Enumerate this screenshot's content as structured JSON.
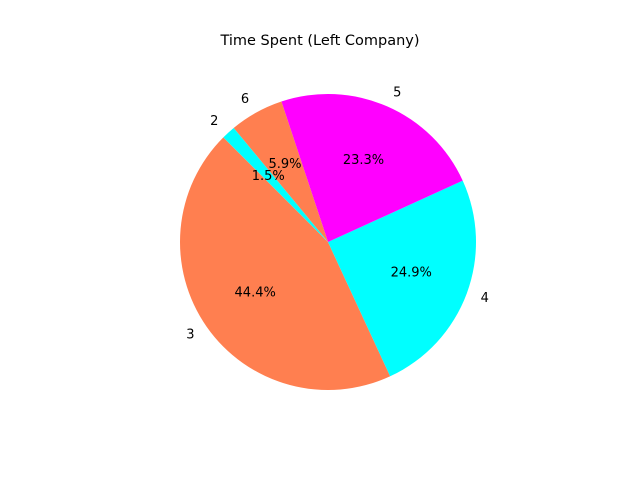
{
  "chart_data": {
    "type": "pie",
    "title": "Time Spent (Left Company)",
    "start_angle_deg": 135,
    "direction": "counterclockwise",
    "slices": [
      {
        "label": "3",
        "value": 44.4,
        "percent_label": "44.4%",
        "color": "#ff7f50"
      },
      {
        "label": "4",
        "value": 24.9,
        "percent_label": "24.9%",
        "color": "#00ffff"
      },
      {
        "label": "5",
        "value": 23.3,
        "percent_label": "23.3%",
        "color": "#ff00ff"
      },
      {
        "label": "6",
        "value": 5.9,
        "percent_label": "5.9%",
        "color": "#ff7f50"
      },
      {
        "label": "2",
        "value": 1.5,
        "percent_label": "1.5%",
        "color": "#00ffff"
      }
    ]
  }
}
